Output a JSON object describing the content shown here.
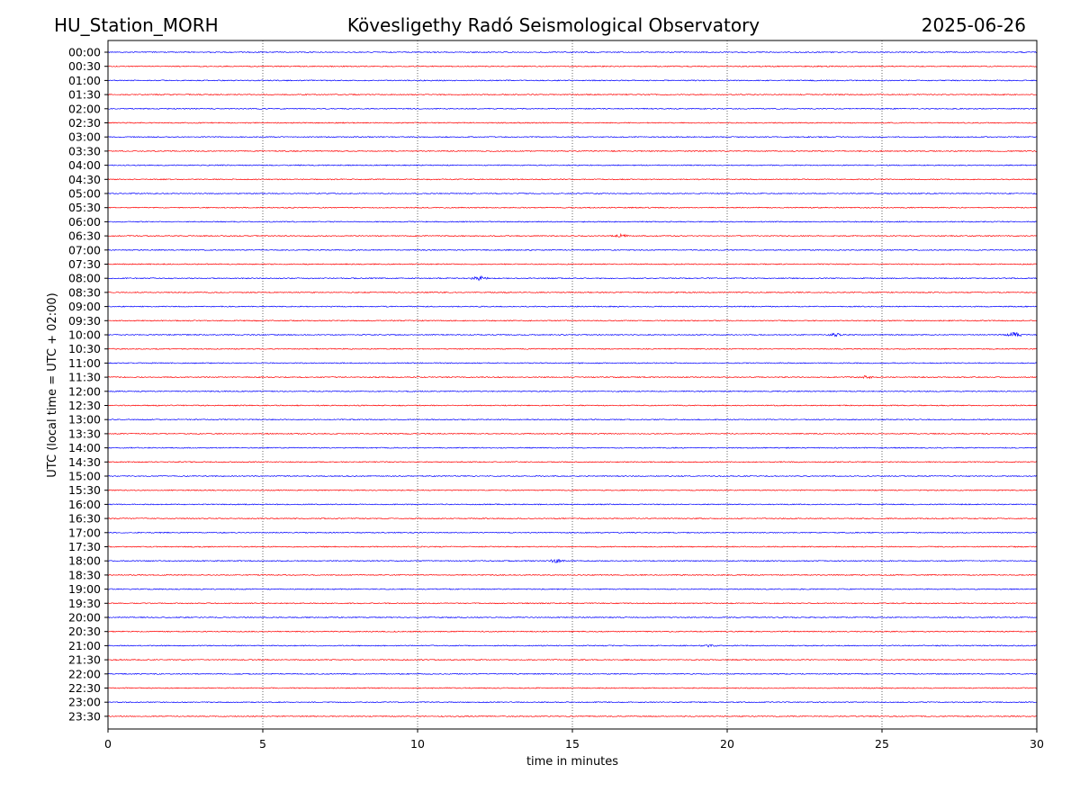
{
  "header": {
    "station": "HU_Station_MORH",
    "observatory": "Kövesligethy Radó Seismological Observatory",
    "date": "2025-06-26"
  },
  "chart_data": {
    "type": "line",
    "title": "Kövesligethy Radó Seismological Observatory",
    "xlabel": "time in minutes",
    "ylabel": "UTC (local time = UTC + 02:00)",
    "xlim": [
      0,
      30
    ],
    "x_ticks": [
      0,
      5,
      10,
      15,
      20,
      25,
      30
    ],
    "grid": "vertical dotted lines at 5-minute ticks",
    "colors": [
      "#0000ff",
      "#ff0000"
    ],
    "row_labels": [
      "00:00",
      "00:30",
      "01:00",
      "01:30",
      "02:00",
      "02:30",
      "03:00",
      "03:30",
      "04:00",
      "04:30",
      "05:00",
      "05:30",
      "06:00",
      "06:30",
      "07:00",
      "07:30",
      "08:00",
      "08:30",
      "09:00",
      "09:30",
      "10:00",
      "10:30",
      "11:00",
      "11:30",
      "12:00",
      "12:30",
      "13:00",
      "13:30",
      "14:00",
      "14:30",
      "15:00",
      "15:30",
      "16:00",
      "16:30",
      "17:00",
      "17:30",
      "18:00",
      "18:30",
      "19:00",
      "19:30",
      "20:00",
      "20:30",
      "21:00",
      "21:30",
      "22:00",
      "22:30",
      "23:00",
      "23:30"
    ],
    "events": [
      {
        "row": "06:30",
        "minute": 16.5,
        "amplitude": 2.0
      },
      {
        "row": "08:00",
        "minute": 12.0,
        "amplitude": 2.2
      },
      {
        "row": "10:00",
        "minute": 29.3,
        "amplitude": 2.5
      },
      {
        "row": "10:00",
        "minute": 23.5,
        "amplitude": 1.4
      },
      {
        "row": "11:30",
        "minute": 24.5,
        "amplitude": 1.3
      },
      {
        "row": "18:00",
        "minute": 14.5,
        "amplitude": 2.0
      },
      {
        "row": "21:00",
        "minute": 19.4,
        "amplitude": 1.2
      }
    ]
  }
}
